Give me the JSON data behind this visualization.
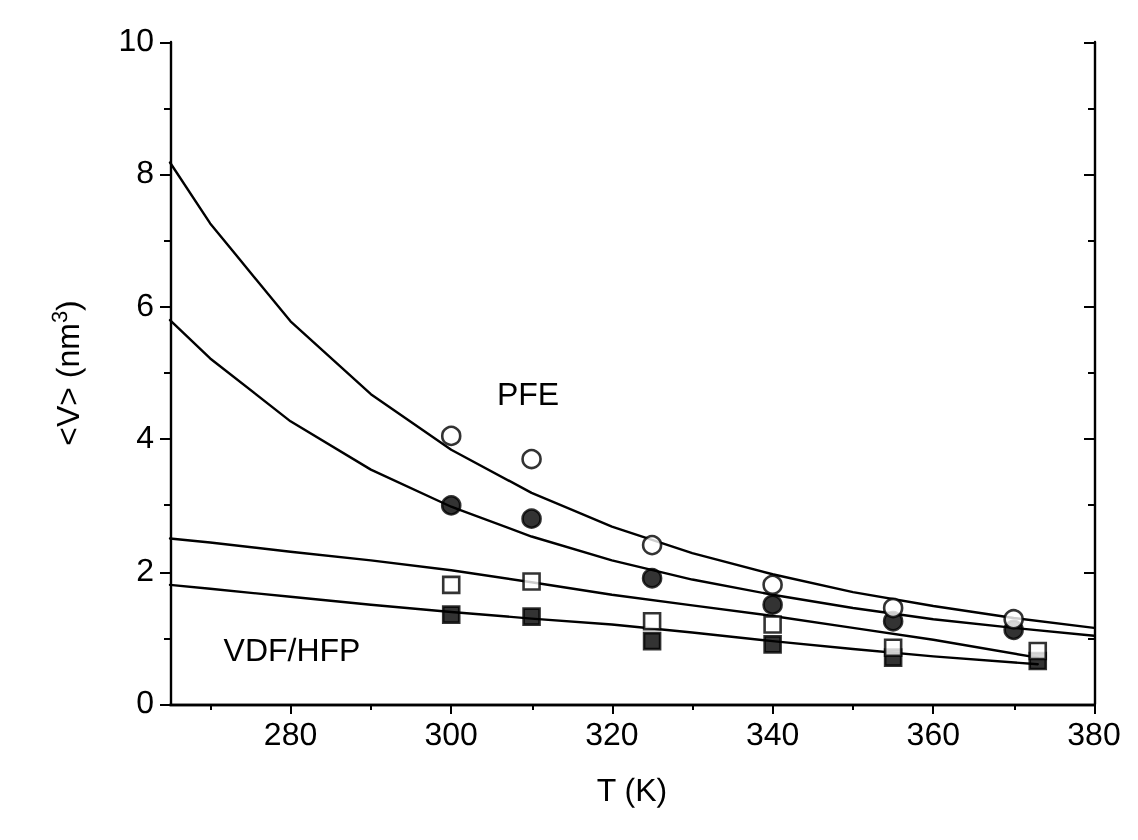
{
  "chart_data": {
    "type": "scatter",
    "xlabel": "T (K)",
    "ylabel": "<V> (nm$^{3}$)",
    "xlim": [
      265,
      380
    ],
    "xticks": [
      280,
      300,
      320,
      340,
      360,
      380
    ],
    "ylim": [
      0,
      10
    ],
    "yticks": [
      0,
      2,
      4,
      6,
      8,
      10
    ],
    "annotations": [
      "PFE",
      "VDF/HFP"
    ],
    "series": [
      {
        "marker": "circle",
        "color": "#ffffff",
        "x": [
          300,
          310,
          325,
          340,
          355,
          370
        ],
        "values": [
          4.05,
          3.7,
          2.4,
          1.8,
          1.45,
          1.28
        ]
      },
      {
        "marker": "circle",
        "color": "#000000",
        "x": [
          300,
          310,
          325,
          340,
          355,
          370
        ],
        "values": [
          3.0,
          2.8,
          1.9,
          1.5,
          1.25,
          1.12
        ]
      },
      {
        "marker": "square",
        "color": "#ffffff",
        "x": [
          300,
          310,
          325,
          340,
          355,
          373
        ],
        "values": [
          1.8,
          1.85,
          1.25,
          1.2,
          0.85,
          0.8
        ]
      },
      {
        "marker": "square",
        "color": "#000000",
        "x": [
          300,
          310,
          325,
          340,
          355,
          373
        ],
        "values": [
          1.35,
          1.32,
          0.95,
          0.9,
          0.7,
          0.65
        ]
      },
      {
        "type": "line",
        "marker": "none",
        "color": "#000000",
        "x": [
          265,
          270,
          280,
          290,
          300,
          310,
          320,
          330,
          340,
          350,
          360,
          370,
          380
        ],
        "values": [
          8.18,
          7.26,
          5.78,
          4.68,
          3.84,
          3.19,
          2.68,
          2.28,
          1.96,
          1.69,
          1.48,
          1.3,
          1.15
        ]
      },
      {
        "type": "line",
        "marker": "none",
        "color": "#000000",
        "x": [
          265,
          270,
          280,
          290,
          300,
          310,
          320,
          330,
          340,
          350,
          360,
          370,
          380
        ],
        "values": [
          5.8,
          5.22,
          4.27,
          3.54,
          2.98,
          2.53,
          2.17,
          1.88,
          1.65,
          1.45,
          1.28,
          1.15,
          1.03
        ]
      },
      {
        "type": "line",
        "marker": "none",
        "color": "#000000",
        "x": [
          265,
          270,
          280,
          290,
          300,
          310,
          320,
          330,
          340,
          350,
          360,
          373
        ],
        "values": [
          2.5,
          2.44,
          2.3,
          2.17,
          2.02,
          1.84,
          1.65,
          1.49,
          1.33,
          1.15,
          0.97,
          0.7
        ]
      },
      {
        "type": "line",
        "marker": "none",
        "color": "#000000",
        "x": [
          265,
          270,
          280,
          290,
          300,
          310,
          320,
          330,
          340,
          350,
          360,
          373
        ],
        "values": [
          1.8,
          1.74,
          1.62,
          1.5,
          1.39,
          1.29,
          1.2,
          1.08,
          0.95,
          0.83,
          0.72,
          0.6
        ]
      }
    ]
  }
}
